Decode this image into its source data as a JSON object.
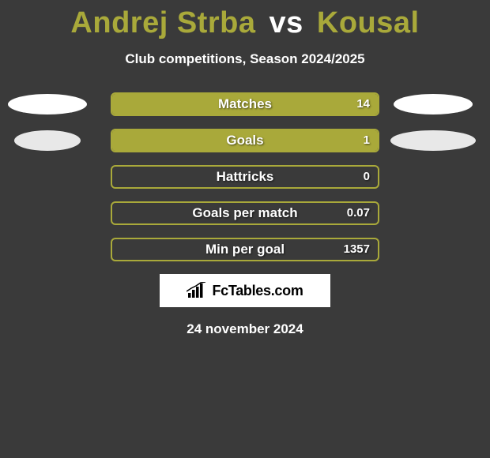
{
  "background_color": "#3a3a3a",
  "accent_color": "#a9a93a",
  "text_color": "#ffffff",
  "title": {
    "player1": "Andrej Strba",
    "vs": "vs",
    "player2": "Kousal",
    "player1_color": "#a9a93a",
    "vs_color": "#ffffff",
    "player2_color": "#a9a93a",
    "fontsize": 38
  },
  "subtitle": "Club competitions, Season 2024/2025",
  "rows": [
    {
      "label": "Matches",
      "left_value": "",
      "right_value": "14",
      "left_fill_pct": 0,
      "right_fill_pct": 100,
      "show_left_ellipse": true,
      "show_right_ellipse": true,
      "left_ellipse_color": "#ffffff",
      "right_ellipse_color": "#ffffff",
      "left_ellipse_width": 100,
      "right_ellipse_width": 100
    },
    {
      "label": "Goals",
      "left_value": "",
      "right_value": "1",
      "left_fill_pct": 0,
      "right_fill_pct": 100,
      "show_left_ellipse": true,
      "show_right_ellipse": true,
      "left_ellipse_color": "#e8e8e8",
      "right_ellipse_color": "#e8e8e8",
      "left_ellipse_width": 84,
      "right_ellipse_width": 108
    },
    {
      "label": "Hattricks",
      "left_value": "",
      "right_value": "0",
      "left_fill_pct": 0,
      "right_fill_pct": 0,
      "show_left_ellipse": false,
      "show_right_ellipse": false,
      "left_ellipse_color": "",
      "right_ellipse_color": "",
      "left_ellipse_width": 0,
      "right_ellipse_width": 0
    },
    {
      "label": "Goals per match",
      "left_value": "",
      "right_value": "0.07",
      "left_fill_pct": 0,
      "right_fill_pct": 0,
      "show_left_ellipse": false,
      "show_right_ellipse": false,
      "left_ellipse_color": "",
      "right_ellipse_color": "",
      "left_ellipse_width": 0,
      "right_ellipse_width": 0
    },
    {
      "label": "Min per goal",
      "left_value": "",
      "right_value": "1357",
      "left_fill_pct": 0,
      "right_fill_pct": 0,
      "show_left_ellipse": false,
      "show_right_ellipse": false,
      "left_ellipse_color": "",
      "right_ellipse_color": "",
      "left_ellipse_width": 0,
      "right_ellipse_width": 0
    }
  ],
  "logo_text": "FcTables.com",
  "date": "24 november 2024"
}
